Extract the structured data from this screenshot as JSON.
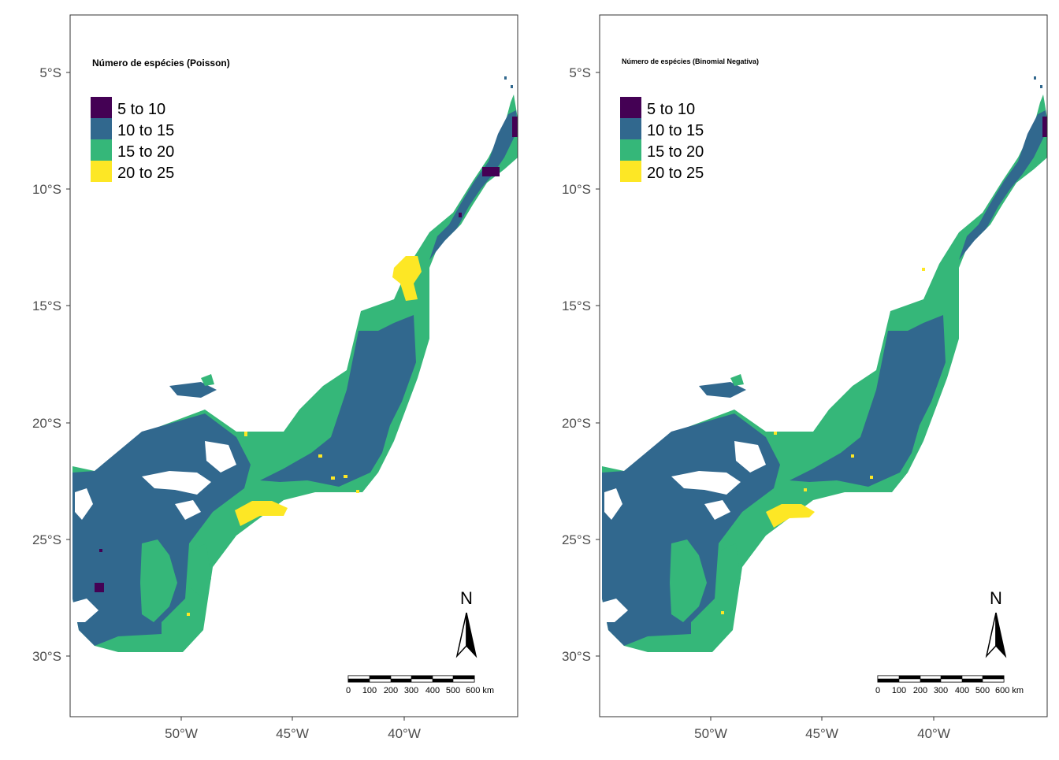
{
  "colors": {
    "c1": "#440154",
    "c2": "#31688e",
    "c3": "#35b779",
    "c4": "#fde725"
  },
  "legend_items": [
    {
      "label": "5 to 10",
      "color": "#440154"
    },
    {
      "label": "10 to 15",
      "color": "#31688e"
    },
    {
      "label": "15 to 20",
      "color": "#35b779"
    },
    {
      "label": "20 to 25",
      "color": "#fde725"
    }
  ],
  "axes": {
    "x_ticks": [
      "50°W",
      "45°W",
      "40°W"
    ],
    "y_ticks": [
      "5°S",
      "10°S",
      "15°S",
      "20°S",
      "25°S",
      "30°S"
    ]
  },
  "scale_bar": {
    "labels": [
      "0",
      "100",
      "200",
      "300",
      "400",
      "500",
      "600 km"
    ]
  },
  "north_label": "N",
  "maps": [
    {
      "legend_title": "Número de espécies (Poisson)"
    },
    {
      "legend_title": "Número de espécies (Binomial Negativa)"
    }
  ]
}
